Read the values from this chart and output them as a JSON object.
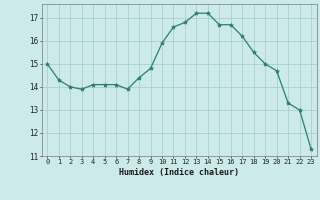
{
  "x": [
    0,
    1,
    2,
    3,
    4,
    5,
    6,
    7,
    8,
    9,
    10,
    11,
    12,
    13,
    14,
    15,
    16,
    17,
    18,
    19,
    20,
    21,
    22,
    23
  ],
  "y": [
    15.0,
    14.3,
    14.0,
    13.9,
    14.1,
    14.1,
    14.1,
    13.9,
    14.4,
    14.8,
    15.9,
    16.6,
    16.8,
    17.2,
    17.2,
    16.7,
    16.7,
    16.2,
    15.5,
    15.0,
    14.7,
    13.3,
    13.0,
    11.3
  ],
  "line_color": "#2e7d6e",
  "marker": "*",
  "marker_size": 3,
  "bg_color": "#cceaea",
  "grid_color": "#aacfcf",
  "xlabel": "Humidex (Indice chaleur)",
  "ylim": [
    11,
    17.6
  ],
  "xlim": [
    -0.5,
    23.5
  ],
  "yticks": [
    11,
    12,
    13,
    14,
    15,
    16,
    17
  ],
  "xticks": [
    0,
    1,
    2,
    3,
    4,
    5,
    6,
    7,
    8,
    9,
    10,
    11,
    12,
    13,
    14,
    15,
    16,
    17,
    18,
    19,
    20,
    21,
    22,
    23
  ]
}
